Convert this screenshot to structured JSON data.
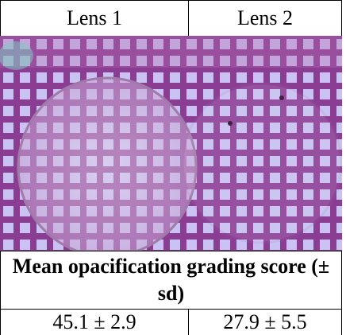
{
  "table": {
    "header": [
      "Lens 1",
      "Lens 2"
    ],
    "caption": "Mean opacification grading score (± sd)",
    "values": [
      "45.1 ± 2.9",
      "27.9 ± 5.5"
    ]
  }
}
